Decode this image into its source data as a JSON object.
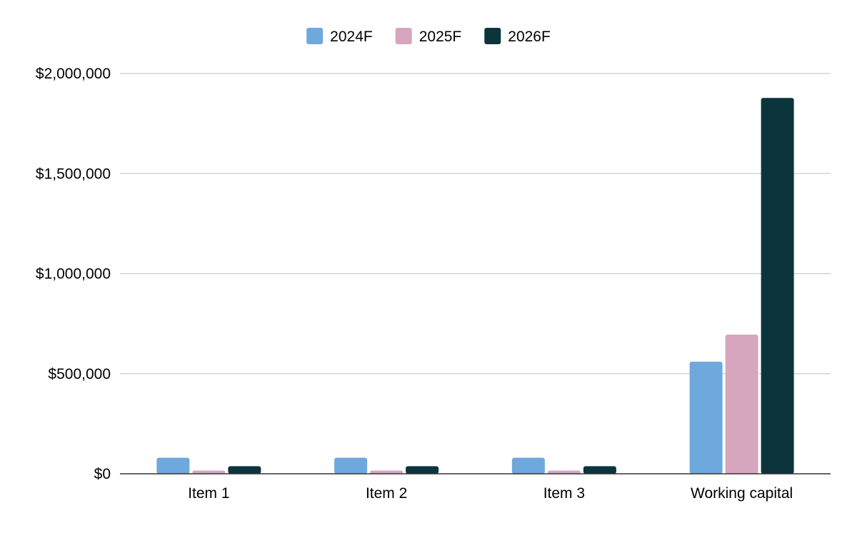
{
  "chart_data": {
    "type": "bar",
    "title": "",
    "xlabel": "",
    "ylabel": "",
    "categories": [
      "Item 1",
      "Item 2",
      "Item 3",
      "Working capital"
    ],
    "series": [
      {
        "name": "2024F",
        "color": "#6fa8dc",
        "values": [
          80000,
          80000,
          80000,
          560000
        ]
      },
      {
        "name": "2025F",
        "color": "#d5a6bd",
        "values": [
          16000,
          16000,
          16000,
          695000
        ]
      },
      {
        "name": "2026F",
        "color": "#0c343d",
        "values": [
          38000,
          38000,
          38000,
          1878000
        ]
      }
    ],
    "ylim": [
      0,
      2000000
    ],
    "yticks": [
      0,
      500000,
      1000000,
      1500000,
      2000000
    ],
    "ytick_labels": [
      "$0",
      "$500,000",
      "$1,000,000",
      "$1,500,000",
      "$2,000,000"
    ],
    "grid": true,
    "legend_position": "top-center"
  }
}
